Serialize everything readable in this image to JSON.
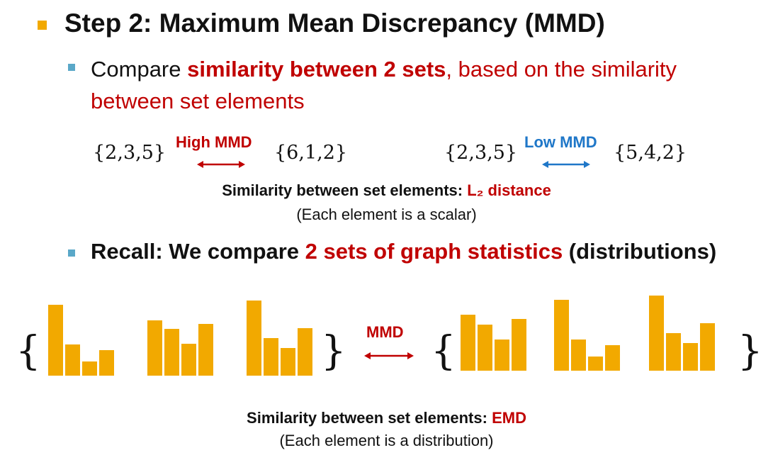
{
  "title": "Step 2: Maximum Mean Discrepancy (MMD)",
  "bullet1": {
    "prefix": "Compare ",
    "emph": "similarity between 2 sets",
    "rest": ", based on the similarity between set elements"
  },
  "examples": {
    "left_set_a": "{2,3,5}",
    "left_set_b": "{6,1,2}",
    "high_label": "High MMD",
    "right_set_a": "{2,3,5}",
    "right_set_b": "{5,4,2}",
    "low_label": "Low MMD"
  },
  "sim1": {
    "prefix": "Similarity between set elements: ",
    "emph": "L₂ distance"
  },
  "note1": "(Each element is a scalar)",
  "recall": {
    "prefix": "Recall: We compare ",
    "emph": "2 sets of graph statistics",
    "suffix": " (distributions)"
  },
  "hist_label": "MMD",
  "braces": {
    "open": "{",
    "close": "}"
  },
  "sim2": {
    "prefix": "Similarity between set elements: ",
    "emph": "EMD"
  },
  "note2": "(Each element is a distribution)",
  "colors": {
    "accent": "#f2a900",
    "red": "#c00000",
    "blue": "#1f77c8",
    "bullet": "#5aa8c8"
  },
  "chart_data": [
    {
      "type": "bar",
      "set": "left",
      "index": 1,
      "values": [
        100,
        44,
        20,
        36
      ]
    },
    {
      "type": "bar",
      "set": "left",
      "index": 2,
      "values": [
        78,
        66,
        45,
        73
      ]
    },
    {
      "type": "bar",
      "set": "left",
      "index": 3,
      "values": [
        106,
        53,
        39,
        67
      ]
    },
    {
      "type": "bar",
      "set": "right",
      "index": 1,
      "values": [
        79,
        65,
        44,
        73
      ]
    },
    {
      "type": "bar",
      "set": "right",
      "index": 2,
      "values": [
        100,
        44,
        20,
        36
      ]
    },
    {
      "type": "bar",
      "set": "right",
      "index": 3,
      "values": [
        106,
        53,
        39,
        67
      ]
    }
  ]
}
